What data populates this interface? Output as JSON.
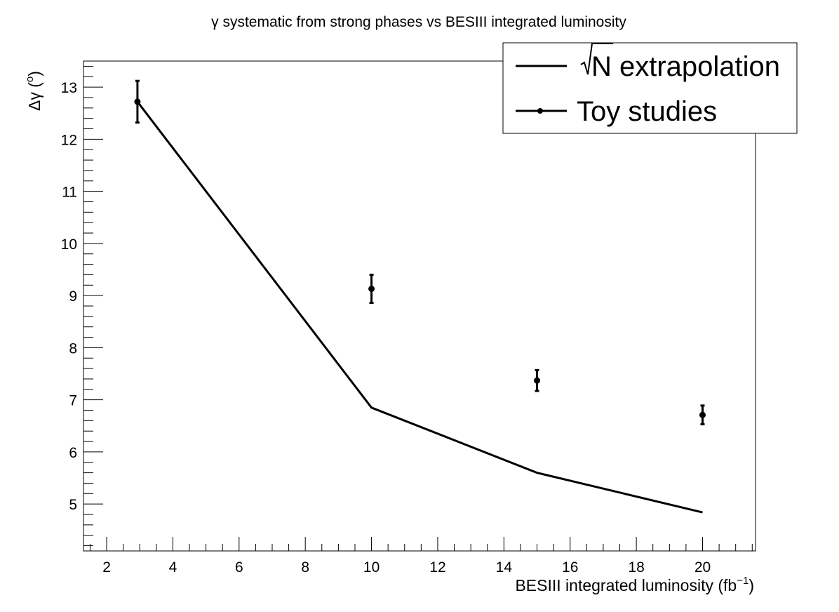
{
  "chart_data": {
    "type": "line",
    "title": "γ systematic from strong phases vs BESIII integrated luminosity",
    "xlabel": "BESIII integrated luminosity (fb",
    "xlabel_sup": "−1",
    "xlabel_close": ")",
    "ylabel": "Δγ (",
    "ylabel_sup": "o",
    "ylabel_close": ")",
    "xlim": [
      1.3,
      21.6
    ],
    "ylim": [
      4.1,
      13.5
    ],
    "x_ticks": [
      2,
      4,
      6,
      8,
      10,
      12,
      14,
      16,
      18,
      20
    ],
    "y_ticks": [
      5,
      6,
      7,
      8,
      9,
      10,
      11,
      12,
      13
    ],
    "x_tick_labels": [
      "2",
      "4",
      "6",
      "8",
      "10",
      "12",
      "14",
      "16",
      "18",
      "20"
    ],
    "y_tick_labels": [
      "5",
      "6",
      "7",
      "8",
      "9",
      "10",
      "11",
      "12",
      "13"
    ],
    "grid": false,
    "legend_position": "top-right",
    "series": [
      {
        "name": "N extrapolation",
        "name_prefix": "√",
        "style": "line",
        "x": [
          2.93,
          10,
          15,
          20
        ],
        "y": [
          12.72,
          6.85,
          5.6,
          4.84
        ]
      },
      {
        "name": "Toy studies",
        "style": "points-with-errors",
        "x": [
          2.93,
          10,
          15,
          20
        ],
        "y": [
          12.72,
          9.13,
          7.37,
          6.71
        ],
        "yerr": [
          0.4,
          0.27,
          0.2,
          0.18
        ]
      }
    ]
  }
}
